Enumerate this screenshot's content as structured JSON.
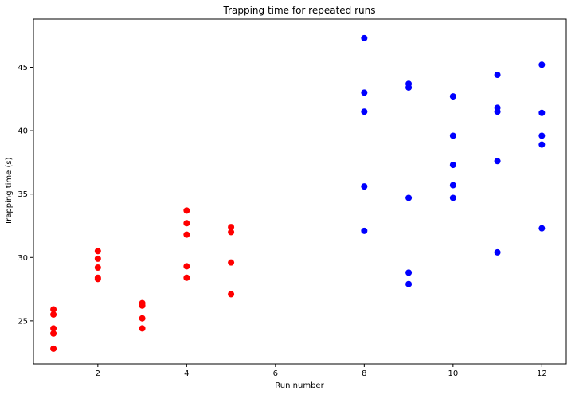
{
  "chart_data": {
    "type": "scatter",
    "title": "Trapping time for repeated runs",
    "xlabel": "Run number",
    "ylabel": "Trapping time (s)",
    "xlim": [
      0.55,
      12.55
    ],
    "ylim": [
      21.6,
      48.8
    ],
    "xticks": [
      2,
      4,
      6,
      8,
      10,
      12
    ],
    "yticks": [
      25,
      30,
      35,
      40,
      45
    ],
    "grid": false,
    "series": [
      {
        "color": "#ff0000",
        "points": [
          [
            1,
            25.9
          ],
          [
            1,
            25.5
          ],
          [
            1,
            24.4
          ],
          [
            1,
            24.0
          ],
          [
            1,
            22.8
          ],
          [
            2,
            30.5
          ],
          [
            2,
            29.9
          ],
          [
            2,
            29.2
          ],
          [
            2,
            28.4
          ],
          [
            2,
            28.3
          ],
          [
            3,
            26.4
          ],
          [
            3,
            26.2
          ],
          [
            3,
            25.2
          ],
          [
            3,
            24.4
          ],
          [
            4,
            33.7
          ],
          [
            4,
            32.7
          ],
          [
            4,
            31.8
          ],
          [
            4,
            29.3
          ],
          [
            4,
            28.4
          ],
          [
            5,
            32.4
          ],
          [
            5,
            32.0
          ],
          [
            5,
            29.6
          ],
          [
            5,
            27.1
          ]
        ]
      },
      {
        "color": "#0000ff",
        "points": [
          [
            8,
            47.3
          ],
          [
            8,
            43.0
          ],
          [
            8,
            41.5
          ],
          [
            8,
            35.6
          ],
          [
            8,
            32.1
          ],
          [
            9,
            43.7
          ],
          [
            9,
            43.4
          ],
          [
            9,
            34.7
          ],
          [
            9,
            28.8
          ],
          [
            9,
            27.9
          ],
          [
            10,
            42.7
          ],
          [
            10,
            39.6
          ],
          [
            10,
            37.3
          ],
          [
            10,
            35.7
          ],
          [
            10,
            34.7
          ],
          [
            11,
            44.4
          ],
          [
            11,
            41.8
          ],
          [
            11,
            41.5
          ],
          [
            11,
            37.6
          ],
          [
            11,
            30.4
          ],
          [
            12,
            45.2
          ],
          [
            12,
            41.4
          ],
          [
            12,
            39.6
          ],
          [
            12,
            38.9
          ],
          [
            12,
            32.3
          ]
        ]
      }
    ]
  }
}
